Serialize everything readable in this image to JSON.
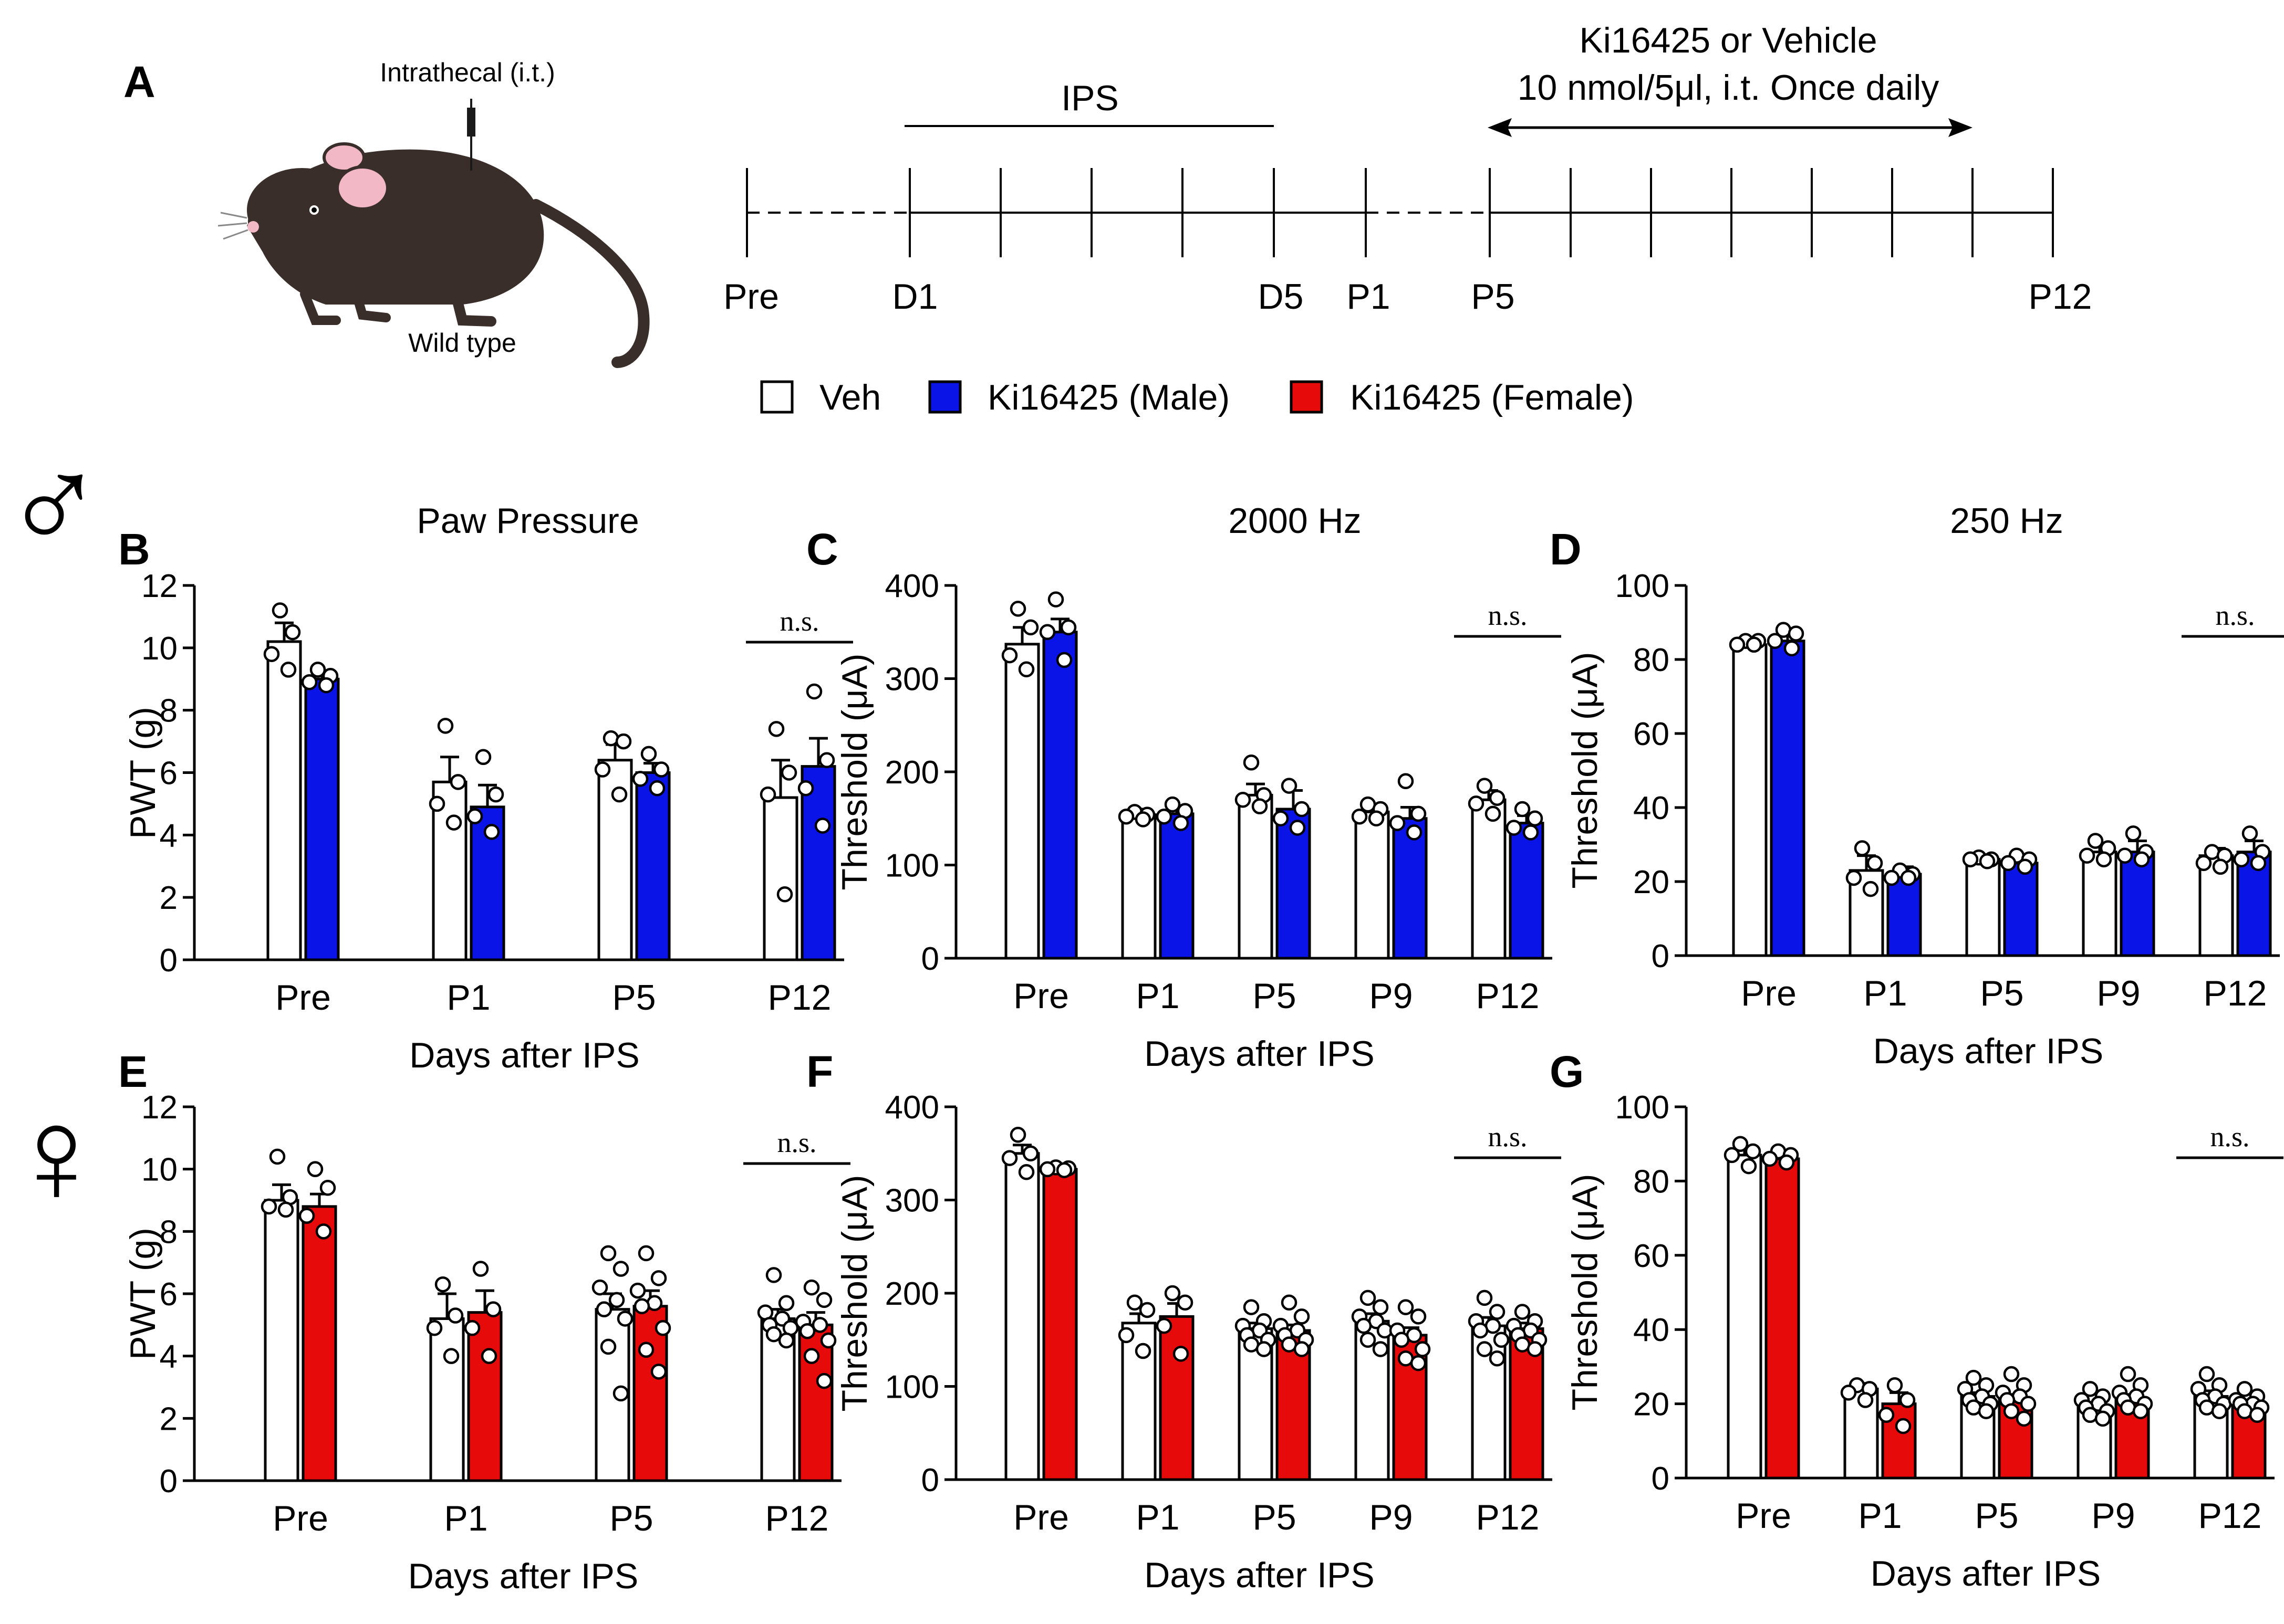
{
  "panel_a": {
    "letter": "A",
    "injection_label": "Intrathecal (i.t.)",
    "mouse_label": "Wild type",
    "ips_label": "IPS",
    "drug_line1": "Ki16425 or Vehicle",
    "drug_line2": "10 nmol/5μl, i.t. Once daily",
    "timeline_labels": [
      "Pre",
      "D1",
      "D5",
      "P1",
      "P5",
      "P12"
    ],
    "colors": {
      "mouse_body": "#3a2e2a",
      "mouse_ear": "#f2b8c6"
    }
  },
  "legend": {
    "veh": "Veh",
    "male": "Ki16425 (Male)",
    "female": "Ki16425 (Female)"
  },
  "sex_symbols": {
    "male": "♂",
    "female": "♀",
    "male_color": "#1a22e0",
    "female_color": "#e61414"
  },
  "colors": {
    "veh": "#ffffff",
    "male": "#0a14e6",
    "female": "#e60a0a"
  },
  "chart_data": [
    {
      "letter": "B",
      "type": "bar",
      "title": "Paw Pressure",
      "ylabel": "PWT (g)",
      "xlabel": "Days after IPS",
      "ylim": [
        0,
        12
      ],
      "yticks": [
        0,
        2,
        4,
        6,
        8,
        10,
        12
      ],
      "categories": [
        "Pre",
        "P1",
        "P5",
        "P12"
      ],
      "kind": "male",
      "ns": "n.s.",
      "series": [
        {
          "name": "Veh",
          "values": [
            10.2,
            5.7,
            6.4,
            5.2
          ],
          "errors": [
            0.6,
            0.8,
            0.5,
            1.2
          ],
          "points": [
            [
              11.2,
              10.5,
              9.8,
              9.3
            ],
            [
              7.5,
              5.7,
              5.0,
              4.4
            ],
            [
              7.1,
              7.0,
              6.1,
              5.3
            ],
            [
              7.4,
              6.0,
              5.3,
              2.1
            ]
          ]
        },
        {
          "name": "Ki16425 (Male)",
          "values": [
            9.0,
            4.9,
            6.0,
            6.2
          ],
          "errors": [
            0.2,
            0.7,
            0.3,
            0.9
          ],
          "points": [
            [
              9.3,
              9.1,
              8.9,
              8.8
            ],
            [
              6.5,
              5.3,
              4.6,
              4.1
            ],
            [
              6.6,
              6.1,
              5.8,
              5.5
            ],
            [
              8.6,
              6.4,
              5.5,
              4.3
            ]
          ]
        }
      ]
    },
    {
      "letter": "C",
      "type": "bar",
      "title": "2000 Hz",
      "ylabel": "Threshold (μA)",
      "xlabel": "Days after IPS",
      "ylim": [
        0,
        400
      ],
      "yticks": [
        0,
        100,
        200,
        300,
        400
      ],
      "categories": [
        "Pre",
        "P1",
        "P5",
        "P9",
        "P12"
      ],
      "kind": "male",
      "ns": "n.s.",
      "series": [
        {
          "name": "Veh",
          "values": [
            337,
            154,
            175,
            157,
            170
          ],
          "errors": [
            18,
            6,
            12,
            8,
            10
          ],
          "points": [
            [
              375,
              355,
              325,
              310
            ],
            [
              157,
              154,
              152,
              149
            ],
            [
              210,
              175,
              170,
              163
            ],
            [
              165,
              160,
              152,
              150
            ],
            [
              185,
              172,
              166,
              155
            ]
          ]
        },
        {
          "name": "Ki16425 (Male)",
          "values": [
            350,
            155,
            160,
            150,
            145
          ],
          "errors": [
            14,
            8,
            20,
            12,
            8
          ],
          "points": [
            [
              385,
              355,
              350,
              320
            ],
            [
              165,
              158,
              152,
              145
            ],
            [
              185,
              160,
              150,
              140
            ],
            [
              190,
              155,
              145,
              135
            ],
            [
              160,
              150,
              140,
              135
            ]
          ]
        }
      ]
    },
    {
      "letter": "D",
      "type": "bar",
      "title": "250 Hz",
      "ylabel": "Threshold (μA)",
      "xlabel": "Days after IPS",
      "ylim": [
        0,
        100
      ],
      "yticks": [
        0,
        20,
        40,
        60,
        80,
        100
      ],
      "categories": [
        "Pre",
        "P1",
        "P5",
        "P9",
        "P12"
      ],
      "kind": "male",
      "ns": "n.s.",
      "series": [
        {
          "name": "Veh",
          "values": [
            84,
            23,
            26,
            28,
            27
          ],
          "errors": [
            1,
            4,
            1,
            2,
            2
          ],
          "points": [
            [
              85,
              85,
              84,
              84
            ],
            [
              29,
              25,
              21,
              18
            ],
            [
              26.5,
              26,
              26,
              25.5
            ],
            [
              31,
              29,
              27,
              26
            ],
            [
              28,
              27,
              25,
              24
            ]
          ]
        },
        {
          "name": "Ki16425 (Male)",
          "values": [
            85,
            22,
            25,
            28,
            28
          ],
          "errors": [
            2,
            2,
            1,
            3,
            3
          ],
          "points": [
            [
              88,
              87,
              85,
              83
            ],
            [
              23,
              22,
              21,
              21
            ],
            [
              27,
              26,
              25,
              24
            ],
            [
              33,
              28,
              27,
              26
            ],
            [
              33,
              28,
              26,
              25
            ]
          ]
        }
      ]
    },
    {
      "letter": "E",
      "type": "bar",
      "title": "",
      "ylabel": "PWT (g)",
      "xlabel": "Days after IPS",
      "ylim": [
        0,
        12
      ],
      "yticks": [
        0,
        2,
        4,
        6,
        8,
        10,
        12
      ],
      "categories": [
        "Pre",
        "P1",
        "P5",
        "P12"
      ],
      "kind": "female",
      "ns": "n.s.",
      "series": [
        {
          "name": "Veh",
          "values": [
            9.0,
            5.2,
            5.5,
            5.2
          ],
          "errors": [
            0.5,
            0.8,
            0.5,
            0.3
          ],
          "points": [
            [
              10.4,
              9.1,
              8.8,
              8.7
            ],
            [
              6.3,
              5.3,
              4.9,
              4.0
            ],
            [
              7.3,
              6.8,
              6.2,
              5.8,
              5.5,
              5.2,
              4.3,
              2.8
            ],
            [
              6.6,
              5.7,
              5.4,
              5.2,
              5.0,
              4.9,
              4.7,
              4.5
            ]
          ]
        },
        {
          "name": "Ki16425 (Female)",
          "values": [
            8.8,
            5.4,
            5.6,
            5.0
          ],
          "errors": [
            0.4,
            0.7,
            0.5,
            0.4
          ],
          "points": [
            [
              10.0,
              9.4,
              8.5,
              8.0
            ],
            [
              6.8,
              5.5,
              4.9,
              4.0
            ],
            [
              7.3,
              6.5,
              6.1,
              5.7,
              5.6,
              4.9,
              4.2,
              3.5
            ],
            [
              6.2,
              5.8,
              5.1,
              5.0,
              4.8,
              4.5,
              4.0,
              3.2
            ]
          ]
        }
      ]
    },
    {
      "letter": "F",
      "type": "bar",
      "title": "",
      "ylabel": "Threshold (μA)",
      "xlabel": "Days after IPS",
      "ylim": [
        0,
        400
      ],
      "yticks": [
        0,
        100,
        200,
        300,
        400
      ],
      "categories": [
        "Pre",
        "P1",
        "P5",
        "P9",
        "P12"
      ],
      "kind": "female",
      "ns": "n.s.",
      "series": [
        {
          "name": "Veh",
          "values": [
            350,
            168,
            162,
            170,
            165
          ],
          "errors": [
            9,
            10,
            6,
            8,
            9
          ],
          "points": [
            [
              370,
              350,
              345,
              330
            ],
            [
              190,
              182,
              155,
              138
            ],
            [
              185,
              170,
              165,
              160,
              155,
              150,
              145,
              140
            ],
            [
              195,
              185,
              175,
              170,
              165,
              160,
              150,
              140
            ],
            [
              195,
              180,
              170,
              165,
              160,
              150,
              140,
              130
            ]
          ]
        },
        {
          "name": "Ki16425 (Female)",
          "values": [
            333,
            175,
            160,
            155,
            162
          ],
          "errors": [
            2,
            14,
            6,
            8,
            6
          ],
          "points": [
            [
              335,
              334,
              333,
              332
            ],
            [
              200,
              190,
              165,
              135
            ],
            [
              190,
              175,
              165,
              160,
              155,
              150,
              145,
              140
            ],
            [
              185,
              175,
              160,
              155,
              150,
              140,
              130,
              125
            ],
            [
              180,
              170,
              165,
              160,
              155,
              150,
              145,
              140
            ]
          ]
        }
      ]
    },
    {
      "letter": "G",
      "type": "bar",
      "title": "",
      "ylabel": "Threshold (μA)",
      "xlabel": "Days after IPS",
      "ylim": [
        0,
        100
      ],
      "yticks": [
        0,
        20,
        40,
        60,
        80,
        100
      ],
      "categories": [
        "Pre",
        "P1",
        "P5",
        "P9",
        "P12"
      ],
      "kind": "female",
      "ns": "n.s.",
      "series": [
        {
          "name": "Veh",
          "values": [
            87,
            24,
            22,
            19,
            22
          ],
          "errors": [
            1.5,
            1.5,
            1.0,
            1.0,
            1.5
          ],
          "points": [
            [
              90,
              88,
              87,
              84
            ],
            [
              25,
              24,
              23,
              21
            ],
            [
              27,
              25,
              24,
              22,
              21,
              20,
              19,
              18
            ],
            [
              24,
              22,
              21,
              20,
              19,
              18,
              17,
              16
            ],
            [
              28,
              25,
              24,
              22,
              21,
              20,
              19,
              18
            ]
          ]
        },
        {
          "name": "Ki16425 (Female)",
          "values": [
            86,
            20,
            21,
            21,
            20
          ],
          "errors": [
            1,
            3,
            1.5,
            1.5,
            1
          ],
          "points": [
            [
              88,
              87,
              86,
              85
            ],
            [
              25,
              21,
              17,
              14
            ],
            [
              28,
              25,
              23,
              22,
              21,
              20,
              18,
              16
            ],
            [
              28,
              25,
              23,
              22,
              21,
              20,
              19,
              18
            ],
            [
              24,
              22,
              21,
              20,
              20,
              19,
              18,
              17
            ]
          ]
        }
      ]
    }
  ]
}
